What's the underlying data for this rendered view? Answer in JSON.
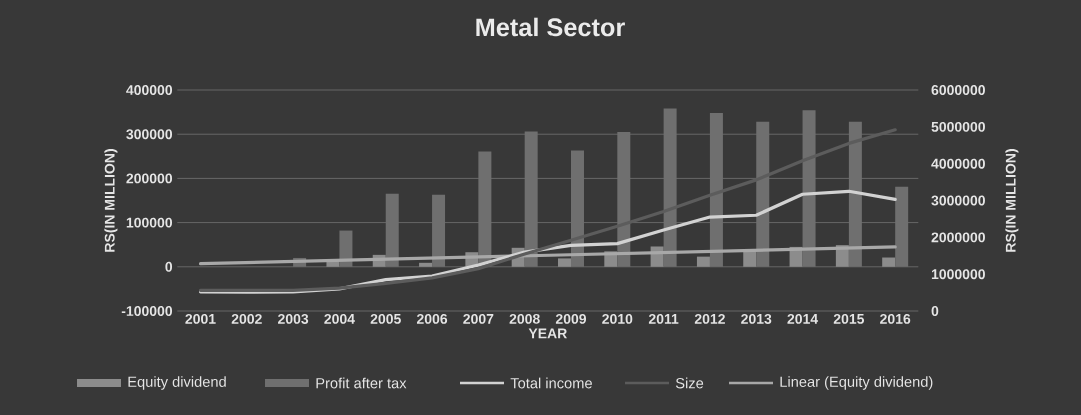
{
  "chart_data": {
    "type": "bar",
    "title": "Metal Sector",
    "xlabel": "YEAR",
    "ylabel": "RS(IN MILLION)",
    "y2label": "RS(IN MILLION)",
    "categories": [
      "2001",
      "2002",
      "2003",
      "2004",
      "2005",
      "2006",
      "2007",
      "2008",
      "2009",
      "2010",
      "2011",
      "2012",
      "2013",
      "2014",
      "2015",
      "2016"
    ],
    "series": [
      {
        "name": "Equity dividend",
        "color": "#8c8c8c",
        "values": [
          null,
          null,
          null,
          15000,
          27000,
          9000,
          33000,
          43000,
          19000,
          35000,
          46000,
          23000,
          39000,
          45000,
          49000,
          21000
        ]
      },
      {
        "name": "Profit after tax",
        "color": "#6f6f6f",
        "values": [
          null,
          null,
          20000,
          82000,
          165000,
          163000,
          261000,
          306000,
          263000,
          305000,
          358000,
          348000,
          328000,
          354000,
          328000,
          181000
        ]
      },
      {
        "name": "Total income",
        "type": "line",
        "axis": "y2",
        "color": "#d2d2d2",
        "values": [
          520000,
          510000,
          520000,
          600000,
          850000,
          950000,
          1250000,
          1600000,
          1780000,
          1830000,
          2200000,
          2550000,
          2600000,
          3170000,
          3250000,
          3030000
        ]
      },
      {
        "name": "Size",
        "type": "line",
        "axis": "y2",
        "color": "#5c5c5c",
        "values": [
          560000,
          560000,
          560000,
          620000,
          750000,
          900000,
          1150000,
          1550000,
          1920000,
          2300000,
          2700000,
          3140000,
          3560000,
          4080000,
          4550000,
          4920000
        ]
      },
      {
        "name": "Linear (Equity dividend)",
        "type": "line",
        "color": "#a8a8a8",
        "values": [
          7000,
          null,
          null,
          null,
          null,
          null,
          null,
          null,
          null,
          null,
          null,
          null,
          null,
          null,
          null,
          45000
        ]
      }
    ],
    "ylim": [
      -100000,
      400000
    ],
    "yticks": [
      -100000,
      0,
      100000,
      200000,
      300000,
      400000
    ],
    "y2lim": [
      0,
      6000000
    ],
    "y2ticks": [
      0,
      1000000,
      2000000,
      3000000,
      4000000,
      5000000,
      6000000
    ],
    "grid": "y",
    "legend": "bottom"
  }
}
